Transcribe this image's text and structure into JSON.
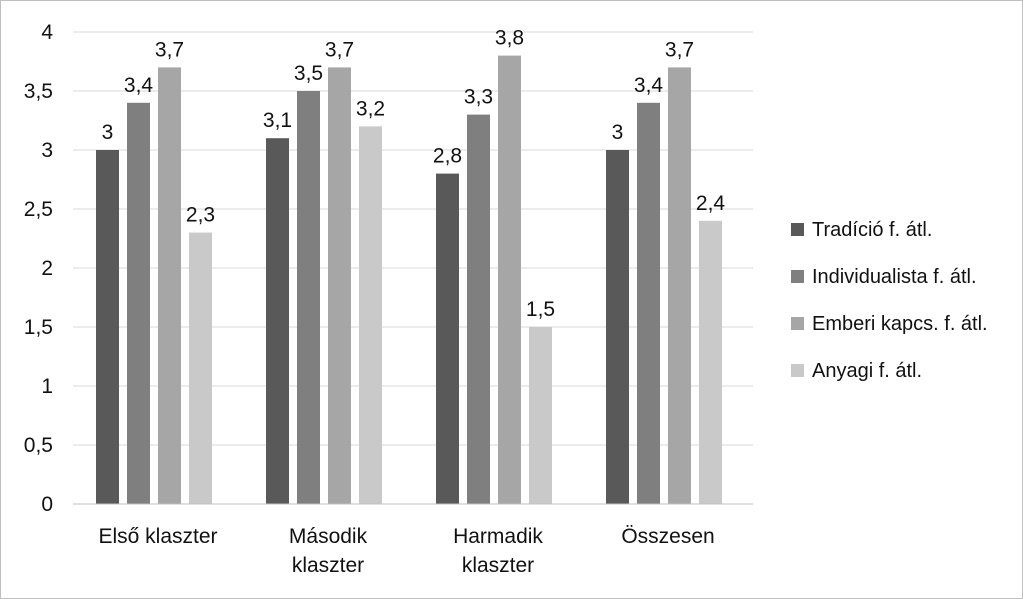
{
  "chart_data": {
    "type": "bar",
    "categories": [
      "Első klaszter",
      "Második klaszter",
      "Harmadik klaszter",
      "Összesen"
    ],
    "category_lines": [
      [
        "Első klaszter"
      ],
      [
        "Második",
        "klaszter"
      ],
      [
        "Harmadik",
        "klaszter"
      ],
      [
        "Összesen"
      ]
    ],
    "series": [
      {
        "name": "Tradíció f. átl.",
        "color": "#595959",
        "values": [
          3,
          3.1,
          2.8,
          3
        ]
      },
      {
        "name": "Individualista f. átl.",
        "color": "#7f7f7f",
        "values": [
          3.4,
          3.5,
          3.3,
          3.4
        ]
      },
      {
        "name": "Emberi kapcs. f. átl.",
        "color": "#a6a6a6",
        "values": [
          3.7,
          3.7,
          3.8,
          3.7
        ]
      },
      {
        "name": "Anyagi f. átl.",
        "color": "#c9c9c9",
        "values": [
          2.3,
          3.2,
          1.5,
          2.4
        ]
      }
    ],
    "data_labels": [
      [
        "3",
        "3,1",
        "2,8",
        "3"
      ],
      [
        "3,4",
        "3,5",
        "3,3",
        "3,4"
      ],
      [
        "3,7",
        "3,7",
        "3,8",
        "3,7"
      ],
      [
        "2,3",
        "3,2",
        "1,5",
        "2,4"
      ]
    ],
    "ylim": [
      0,
      4
    ],
    "yticks": [
      0,
      0.5,
      1,
      1.5,
      2,
      2.5,
      3,
      3.5,
      4
    ],
    "ytick_labels": [
      "0",
      "0,5",
      "1",
      "1,5",
      "2",
      "2,5",
      "3",
      "3,5",
      "4"
    ],
    "grid": true,
    "legend_position": "right"
  }
}
